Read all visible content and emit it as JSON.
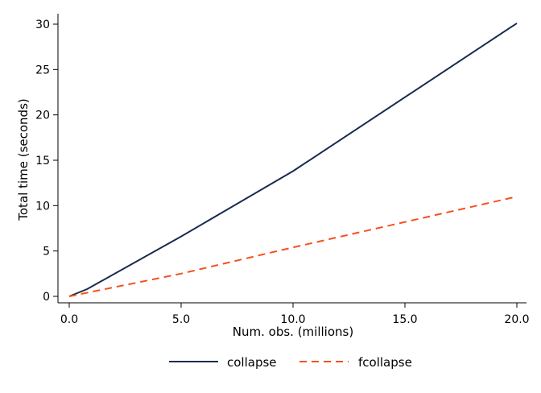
{
  "chart_data": {
    "type": "line",
    "title": "",
    "xlabel": "Num. obs. (millions)",
    "ylabel": "Total time (seconds)",
    "xlim": [
      0,
      20
    ],
    "ylim": [
      0,
      30
    ],
    "xticks": [
      0,
      5,
      10,
      15,
      20
    ],
    "xtick_labels": [
      "0.0",
      "5.0",
      "10.0",
      "15.0",
      "20.0"
    ],
    "yticks": [
      0,
      5,
      10,
      15,
      20,
      25,
      30
    ],
    "ytick_labels": [
      "0",
      "5",
      "10",
      "15",
      "20",
      "25",
      "30"
    ],
    "grid": false,
    "legend_position": "bottom",
    "series": [
      {
        "name": "collapse",
        "color": "#1a2a4f",
        "style": "solid",
        "x": [
          0,
          0.8,
          5,
          10,
          20
        ],
        "y": [
          0,
          0.8,
          6.6,
          13.8,
          30.1
        ]
      },
      {
        "name": "fcollapse",
        "color": "#f4511e",
        "style": "dashed",
        "x": [
          0,
          5,
          10,
          20
        ],
        "y": [
          0,
          2.5,
          5.4,
          11.0
        ]
      }
    ]
  }
}
